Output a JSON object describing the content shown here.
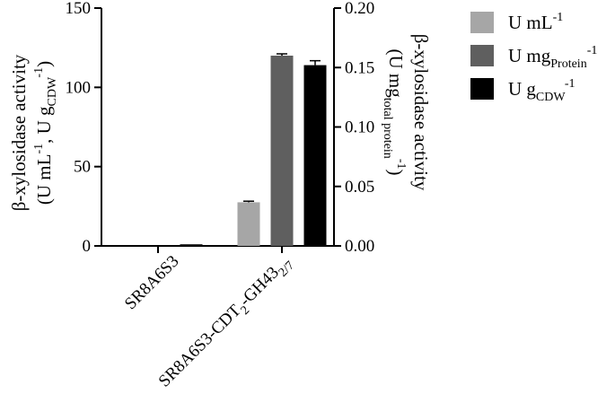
{
  "chart_data": {
    "type": "bar",
    "categories": [
      "SR8A6S3",
      "SR8A6S3-CDT2-GH432/7"
    ],
    "y_left": {
      "label": "β-xylosidase activity (U mL-1, U gCDW-1)",
      "label_line1": "β-xylosidase activity",
      "label_line2_parts": [
        {
          "t": "(U mL",
          "s": "n"
        },
        {
          "t": "-1",
          "s": "sup"
        },
        {
          "t": ", U g",
          "s": "n"
        },
        {
          "t": "CDW",
          "s": "sub"
        },
        {
          "t": "-1",
          "s": "sup"
        },
        {
          "t": ")",
          "s": "n"
        }
      ],
      "ylim": [
        0,
        150
      ],
      "ticks": [
        "0",
        "50",
        "100",
        "150"
      ]
    },
    "y_right": {
      "label": "β-xylosidase activity (U mgtotal protein-1)",
      "label_line1": "β-xylosidase activity",
      "label_line2_parts": [
        {
          "t": "(U mg",
          "s": "n"
        },
        {
          "t": "total protein",
          "s": "sub"
        },
        {
          "t": "-1",
          "s": "sup"
        },
        {
          "t": ")",
          "s": "n"
        }
      ],
      "ylim": [
        0,
        0.2
      ],
      "ticks": [
        "0.00",
        "0.05",
        "0.10",
        "0.15",
        "0.20"
      ]
    },
    "category_label_parts": [
      [
        {
          "t": "SR8A6S3",
          "s": "n"
        }
      ],
      [
        {
          "t": "SR8A6S3-CDT",
          "s": "n"
        },
        {
          "t": "2",
          "s": "sub"
        },
        {
          "t": "-GH43",
          "s": "n"
        },
        {
          "t": "2/7",
          "s": "sub"
        }
      ]
    ],
    "series": [
      {
        "name": "U mL-1",
        "axis": "left",
        "color": "#a6a6a6",
        "values": [
          0,
          27.5
        ],
        "errors": [
          0,
          0.7
        ],
        "legend_parts": [
          {
            "t": "U mL",
            "s": "n"
          },
          {
            "t": "-1",
            "s": "sup"
          }
        ]
      },
      {
        "name": "U mgProtein-1",
        "axis": "right",
        "color": "#5f5f5f",
        "values": [
          0,
          0.16
        ],
        "errors": [
          0,
          0.0015
        ],
        "legend_parts": [
          {
            "t": "U mg",
            "s": "n"
          },
          {
            "t": "Protein",
            "s": "sub"
          },
          {
            "t": "-1",
            "s": "sup"
          }
        ]
      },
      {
        "name": "U gCDW-1",
        "axis": "left",
        "color": "#000000",
        "values": [
          1.0,
          114
        ],
        "errors": [
          0,
          2.8
        ],
        "legend_parts": [
          {
            "t": "U g",
            "s": "n"
          },
          {
            "t": "CDW",
            "s": "sub"
          },
          {
            "t": "-1",
            "s": "sup"
          }
        ]
      }
    ],
    "grid": false,
    "legend_position": "top-right"
  }
}
